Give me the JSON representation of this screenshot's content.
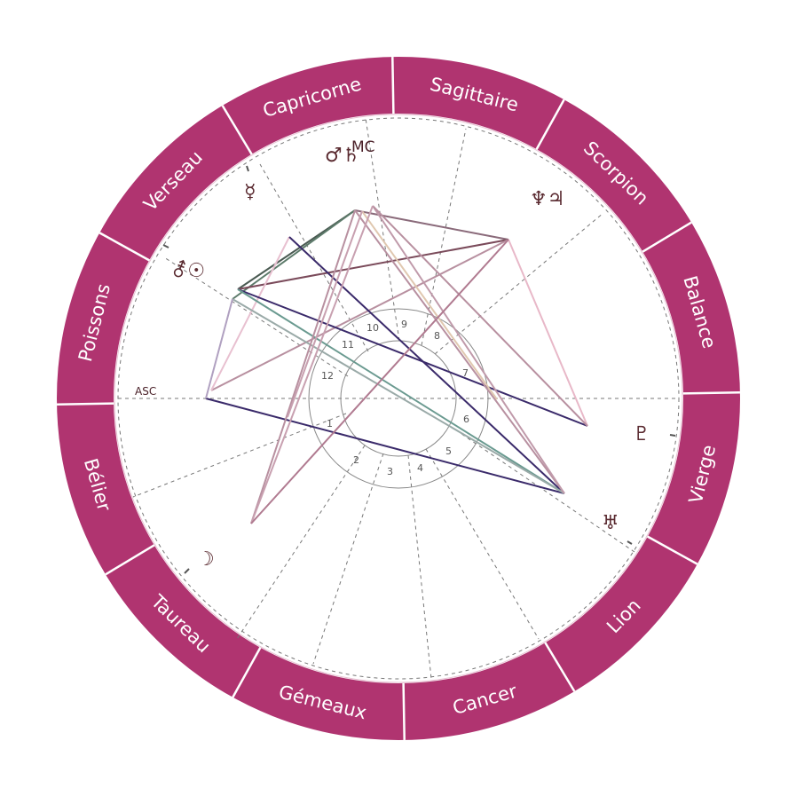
{
  "colors": {
    "ring": "#b03470",
    "ring_divider": "#ffffff",
    "text_on_ring": "#ffffff",
    "glyph": "#5a2a30",
    "dashed": "#777777"
  },
  "signs": [
    {
      "id": "sagittaire",
      "label": "Sagittaire"
    },
    {
      "id": "scorpion",
      "label": "Scorpion"
    },
    {
      "id": "balance",
      "label": "Balance"
    },
    {
      "id": "vierge",
      "label": "Vierge"
    },
    {
      "id": "lion",
      "label": "Lion"
    },
    {
      "id": "cancer",
      "label": "Cancer"
    },
    {
      "id": "gemeaux",
      "label": "Gémeaux"
    },
    {
      "id": "taureau",
      "label": "Taureau"
    },
    {
      "id": "belier",
      "label": "Bélier"
    },
    {
      "id": "poissons",
      "label": "Poissons"
    },
    {
      "id": "verseau",
      "label": "Verseau"
    },
    {
      "id": "capricorne",
      "label": "Capricorne"
    }
  ],
  "axes": {
    "asc_label": "ASC",
    "mc_label": "MC"
  },
  "houses": [
    "1",
    "2",
    "3",
    "4",
    "5",
    "6",
    "7",
    "8",
    "9",
    "10",
    "11",
    "12"
  ],
  "planets": [
    {
      "id": "mars-saturn",
      "glyph": "♂♄",
      "name": "mars-saturn-icon"
    },
    {
      "id": "mercury",
      "glyph": "☿",
      "name": "mercury-icon"
    },
    {
      "id": "venus-sun",
      "glyph": "⚦☉",
      "name": "venus-sun-icon"
    },
    {
      "id": "neptune-jupiter",
      "glyph": "♆♃",
      "name": "neptune-jupiter-icon"
    },
    {
      "id": "pluto",
      "glyph": "♇",
      "name": "pluto-icon"
    },
    {
      "id": "uranus",
      "glyph": "♅",
      "name": "uranus-icon"
    },
    {
      "id": "moon",
      "glyph": "☽",
      "name": "moon-icon"
    }
  ]
}
